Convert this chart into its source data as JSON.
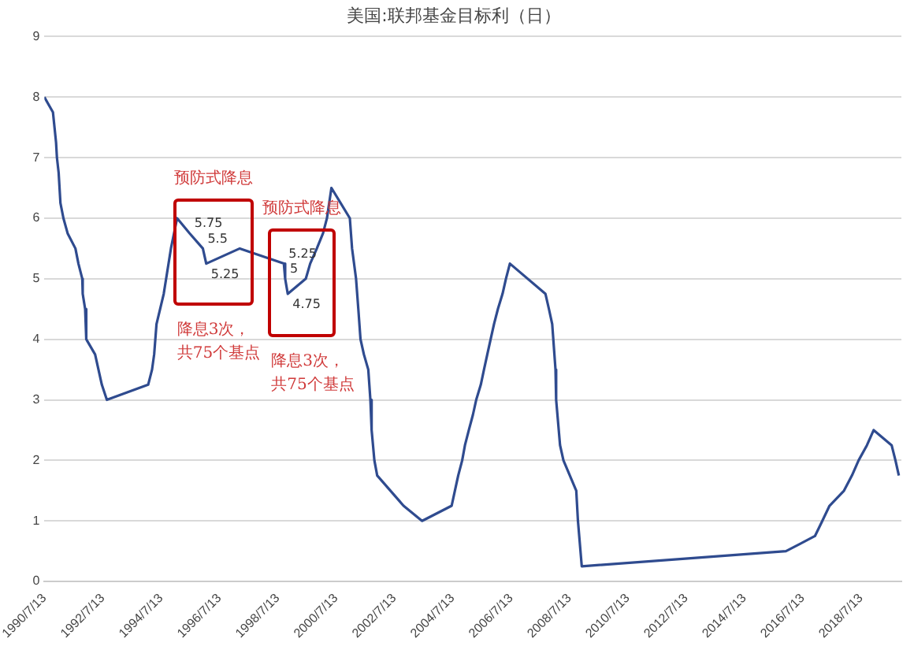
{
  "chart_data": {
    "type": "line",
    "title": "美国:联邦基金目标利（日）",
    "x": [
      "1990-07-13",
      "1990-10-29",
      "1990-12-07",
      "1990-12-18",
      "1991-01-09",
      "1991-02-01",
      "1991-03-08",
      "1991-04-30",
      "1991-08-06",
      "1991-09-13",
      "1991-10-31",
      "1991-11-06",
      "1991-12-06",
      "1991-12-20",
      "1992-04-09",
      "1992-07-02",
      "1992-09-04",
      "1994-02-04",
      "1994-03-22",
      "1994-04-18",
      "1994-05-17",
      "1994-08-16",
      "1994-11-15",
      "1995-02-01",
      "1995-07-06",
      "1995-12-19",
      "1996-01-31",
      "1997-03-25",
      "1998-09-29",
      "1998-10-15",
      "1998-11-17",
      "1999-06-30",
      "1999-08-24",
      "1999-11-16",
      "2000-02-02",
      "2000-03-21",
      "2000-05-16",
      "2001-01-03",
      "2001-01-31",
      "2001-03-20",
      "2001-04-18",
      "2001-05-15",
      "2001-06-27",
      "2001-08-21",
      "2001-09-17",
      "2001-10-02",
      "2001-11-06",
      "2001-12-11",
      "2002-11-06",
      "2003-06-25",
      "2004-06-30",
      "2004-08-10",
      "2004-09-21",
      "2004-11-10",
      "2004-12-14",
      "2005-02-02",
      "2005-03-22",
      "2005-05-03",
      "2005-06-30",
      "2005-08-09",
      "2005-09-20",
      "2005-11-01",
      "2005-12-13",
      "2006-01-31",
      "2006-03-28",
      "2006-05-10",
      "2006-06-29",
      "2007-09-18",
      "2007-10-31",
      "2007-12-11",
      "2008-01-22",
      "2008-01-30",
      "2008-03-18",
      "2008-04-30",
      "2008-10-08",
      "2008-10-29",
      "2008-12-16",
      "2015-12-16",
      "2016-12-14",
      "2017-03-15",
      "2017-06-14",
      "2017-12-13",
      "2018-03-21",
      "2018-06-13",
      "2018-09-26",
      "2018-12-19",
      "2019-07-31",
      "2019-09-18",
      "2019-10-30"
    ],
    "series": [
      {
        "color": "#2f4b8f",
        "values": [
          8,
          7.75,
          7.25,
          7,
          6.75,
          6.25,
          6,
          5.75,
          5.5,
          5.25,
          5,
          4.75,
          4.5,
          4,
          3.75,
          3.25,
          3,
          3.25,
          3.5,
          3.75,
          4.25,
          4.75,
          5.5,
          6,
          5.75,
          5.5,
          5.25,
          5.5,
          5.25,
          5,
          4.75,
          5,
          5.25,
          5.5,
          5.75,
          6,
          6.5,
          6,
          5.5,
          5,
          4.5,
          4,
          3.75,
          3.5,
          3,
          2.5,
          2,
          1.75,
          1.25,
          1,
          1.25,
          1.5,
          1.75,
          2,
          2.25,
          2.5,
          2.75,
          3,
          3.25,
          3.5,
          3.75,
          4,
          4.25,
          4.5,
          4.75,
          5,
          5.25,
          4.75,
          4.5,
          4.25,
          3.5,
          3,
          2.25,
          2,
          1.5,
          1,
          0.25,
          0.5,
          0.75,
          1,
          1.25,
          1.5,
          1.75,
          2,
          2.25,
          2.5,
          2.25,
          2,
          1.75
        ],
        "value_labels": [
          null,
          null,
          null,
          null,
          null,
          null,
          null,
          null,
          null,
          null,
          null,
          null,
          null,
          null,
          null,
          null,
          null,
          null,
          null,
          null,
          null,
          null,
          null,
          null,
          "5.75",
          "5.5",
          "5.25",
          null,
          "5.25",
          "5",
          "4.75",
          null,
          null,
          null,
          null,
          null,
          null,
          null,
          null,
          null,
          null,
          null,
          null,
          null,
          null,
          null,
          null,
          null,
          null,
          null,
          null,
          null,
          null,
          null,
          null,
          null,
          null,
          null,
          null,
          null,
          null,
          null,
          null,
          null,
          null,
          null,
          null,
          null,
          null,
          null,
          null,
          null,
          null,
          null,
          null,
          null,
          null,
          null,
          null,
          null,
          null,
          null,
          null,
          null,
          null,
          null,
          null,
          null,
          null
        ]
      }
    ],
    "xlim": [
      "1990-07-13",
      "2019-12-01"
    ],
    "xticks": [
      {
        "value": "1990-07-13",
        "label": "1990/7/13"
      },
      {
        "value": "1992-07-13",
        "label": "1992/7/13"
      },
      {
        "value": "1994-07-13",
        "label": "1994/7/13"
      },
      {
        "value": "1996-07-13",
        "label": "1996/7/13"
      },
      {
        "value": "1998-07-13",
        "label": "1998/7/13"
      },
      {
        "value": "2000-07-13",
        "label": "2000/7/13"
      },
      {
        "value": "2002-07-13",
        "label": "2002/7/13"
      },
      {
        "value": "2004-07-13",
        "label": "2004/7/13"
      },
      {
        "value": "2006-07-13",
        "label": "2006/7/13"
      },
      {
        "value": "2008-07-13",
        "label": "2008/7/13"
      },
      {
        "value": "2010-07-13",
        "label": "2010/7/13"
      },
      {
        "value": "2012-07-13",
        "label": "2012/7/13"
      },
      {
        "value": "2014-07-13",
        "label": "2014/7/13"
      },
      {
        "value": "2016-07-13",
        "label": "2016/7/13"
      },
      {
        "value": "2018-07-13",
        "label": "2018/7/13"
      }
    ],
    "ylim": [
      0,
      9
    ],
    "yticks": [
      0,
      1,
      2,
      3,
      4,
      5,
      6,
      7,
      8,
      9
    ],
    "grid": "y",
    "marker": "none",
    "line_style": "solid",
    "annotations": [
      "预防式降息",
      "预防式降息",
      "降息3次，共75个基点",
      "降息3次，共75个基点"
    ]
  }
}
